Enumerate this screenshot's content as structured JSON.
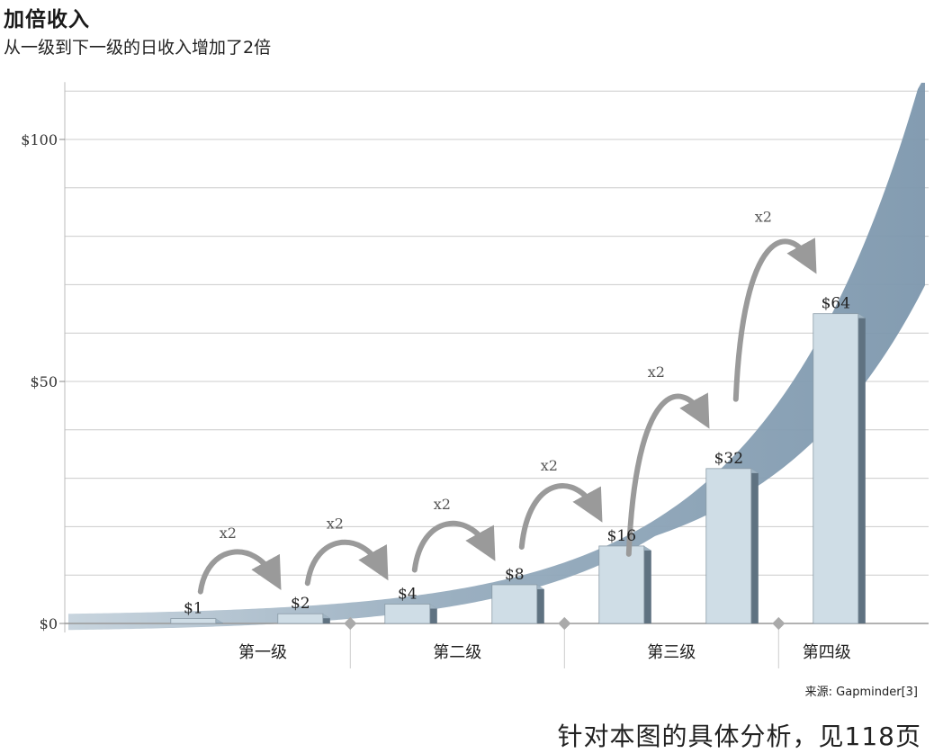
{
  "header": {
    "title": "加倍收入",
    "subtitle": "从一级到下一级的日收入增加了2倍"
  },
  "footer": {
    "note": "针对本图的具体分析，见118页"
  },
  "colors": {
    "band": "#7d97ad",
    "bar_front": "#cfdde6",
    "bar_side": "#5f7281",
    "arrow": "#9a9a9a",
    "grid": "#cccccc"
  },
  "chart_data": {
    "type": "bar",
    "title": "加倍收入",
    "subtitle": "从一级到下一级的日收入增加了2倍",
    "bar_labels": [
      "$1",
      "$2",
      "$4",
      "$8",
      "$16",
      "$32",
      "$64"
    ],
    "values": [
      1,
      2,
      4,
      8,
      16,
      32,
      64
    ],
    "y_ticks": [
      {
        "value": 0,
        "label": "$0"
      },
      {
        "value": 50,
        "label": "$50"
      },
      {
        "value": 100,
        "label": "$100"
      }
    ],
    "ylim": [
      0,
      110
    ],
    "grid": true,
    "grid_step": 10,
    "levels": [
      "第一级",
      "第二级",
      "第三级",
      "第四级"
    ],
    "multiplier_label": "x2",
    "multipliers": [
      "x2",
      "x2",
      "x2",
      "x2",
      "x2",
      "x2"
    ],
    "source": "来源: Gapminder[3]",
    "trend_band": "exponential curve shaded band behind bars"
  }
}
